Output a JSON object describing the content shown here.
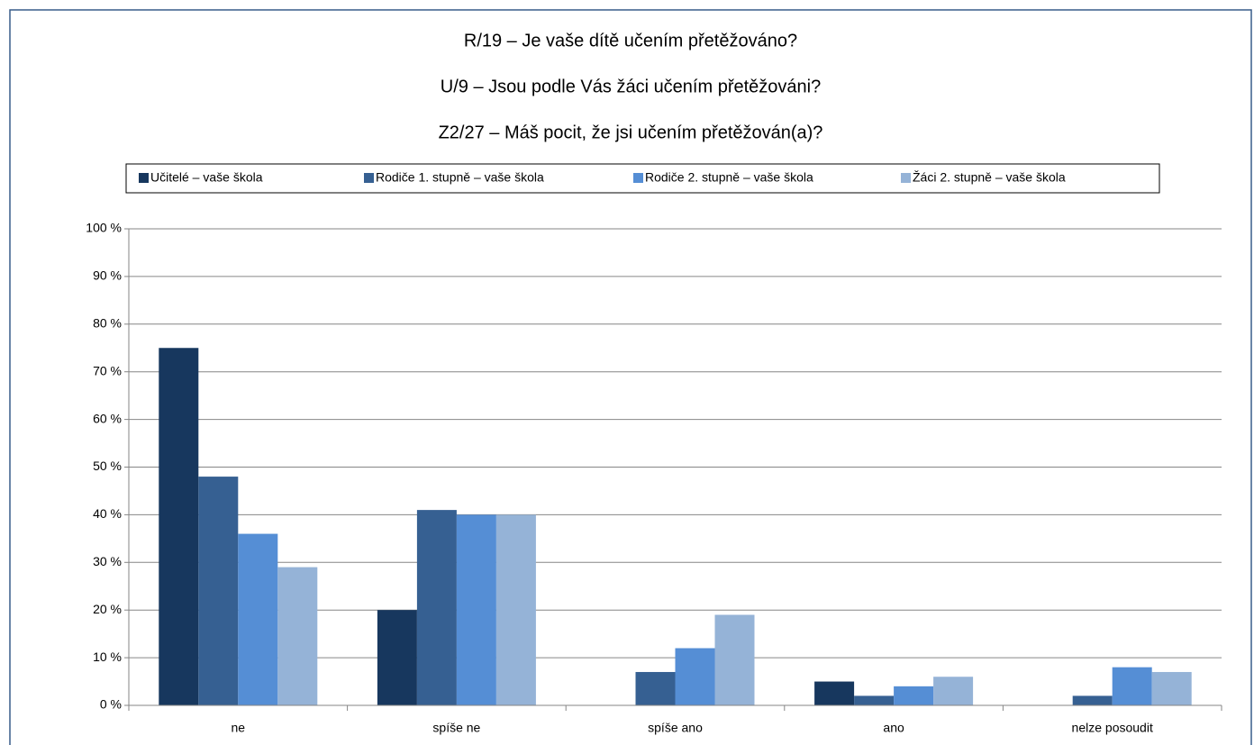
{
  "chart_data": {
    "type": "bar",
    "title": [
      "R/19 – Je vaše dítě učením přetěžováno?",
      "U/9 – Jsou podle Vás žáci učením přetěžováni?",
      "Z2/27 – Máš pocit, že jsi učením přetěžován(a)?"
    ],
    "categories": [
      "ne",
      "spíše ne",
      "spíše ano",
      "ano",
      "nelze posoudit"
    ],
    "series": [
      {
        "name": "Učitelé – vaše škola",
        "color": "#17375e",
        "values": [
          75,
          20,
          0,
          5,
          0
        ]
      },
      {
        "name": "Rodiče 1. stupně – vaše škola",
        "color": "#366092",
        "values": [
          48,
          41,
          7,
          2,
          2
        ]
      },
      {
        "name": "Rodiče 2. stupně – vaše škola",
        "color": "#558ed5",
        "values": [
          36,
          40,
          12,
          4,
          8
        ]
      },
      {
        "name": "Žáci 2. stupně – vaše škola",
        "color": "#95b3d7",
        "values": [
          29,
          40,
          19,
          6,
          7
        ]
      }
    ],
    "ylim": [
      0,
      100
    ],
    "yticks": [
      {
        "value": 0,
        "label": "0 %"
      },
      {
        "value": 10,
        "label": "10 %"
      },
      {
        "value": 20,
        "label": "20 %"
      },
      {
        "value": 30,
        "label": "30 %"
      },
      {
        "value": 40,
        "label": "40 %"
      },
      {
        "value": 50,
        "label": "50 %"
      },
      {
        "value": 60,
        "label": "60 %"
      },
      {
        "value": 70,
        "label": "70 %"
      },
      {
        "value": 80,
        "label": "80 %"
      },
      {
        "value": 90,
        "label": "90 %"
      },
      {
        "value": 100,
        "label": "100 %"
      }
    ],
    "grid": true,
    "legend": "top"
  }
}
